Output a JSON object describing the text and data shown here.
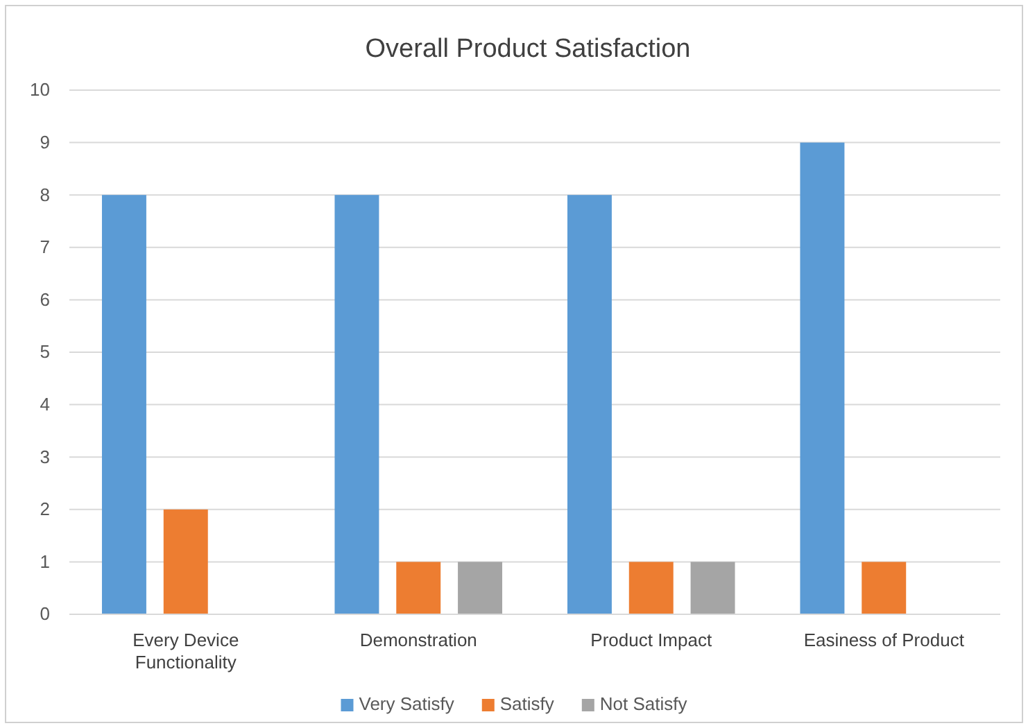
{
  "chart_data": {
    "type": "bar",
    "title": "Overall Product Satisfaction",
    "categories": [
      "Every Device Functionality",
      "Demonstration",
      "Product Impact",
      "Easiness of Product"
    ],
    "series": [
      {
        "name": "Very Satisfy",
        "color": "#5b9bd5",
        "values": [
          8,
          8,
          8,
          9
        ]
      },
      {
        "name": "Satisfy",
        "color": "#ed7d31",
        "values": [
          2,
          1,
          1,
          1
        ]
      },
      {
        "name": "Not Satisfy",
        "color": "#a5a5a5",
        "values": [
          0,
          1,
          1,
          0
        ]
      }
    ],
    "ylim": [
      0,
      10
    ],
    "yticks": [
      0,
      1,
      2,
      3,
      4,
      5,
      6,
      7,
      8,
      9,
      10
    ],
    "grid": "y",
    "legend": "bottom"
  }
}
